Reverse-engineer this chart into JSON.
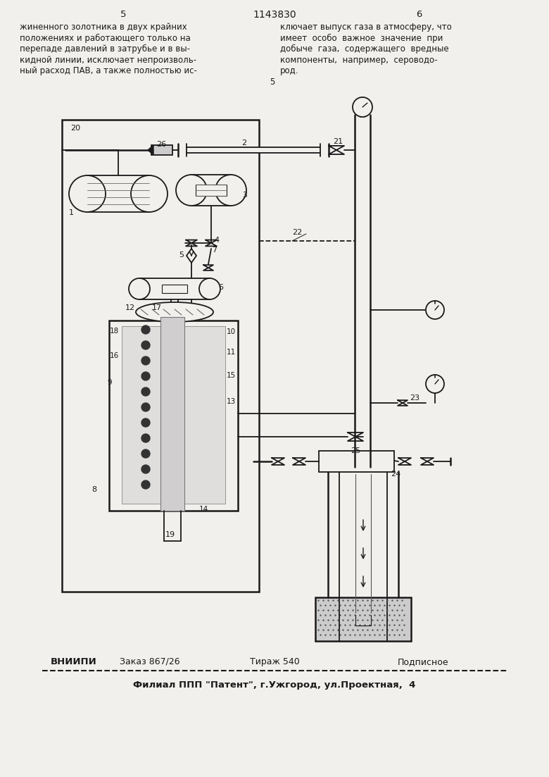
{
  "bg": "#f2f0ed",
  "lc": "#1a1a1a",
  "page_num_left": "5",
  "patent_num": "1143830",
  "page_num_right": "6",
  "header_left_lines": [
    "жиненного золотника в двух крайних",
    "положениях и работающего только на",
    "перепаде давлений в затрубье и в вы-",
    "кидной линии, исключает непроизволь-",
    "ный расход ПАВ, а также полностью ис-"
  ],
  "header_right_lines": [
    "ключает выпуск газа в атмосферу, что",
    "имеет  особо  важное  значение  при",
    "добыче  газа,  содержащего  вредные",
    "компоненты,  например,  сероводо-",
    "род."
  ],
  "footer_org": "ВНИИПИ",
  "footer_order": "Заказ 867/26",
  "footer_print": "Тираж 540",
  "footer_type": "Подписное",
  "footer2": "Филиал ППП \"Патент\", г.Ужгород, ул.Проектная,  4"
}
